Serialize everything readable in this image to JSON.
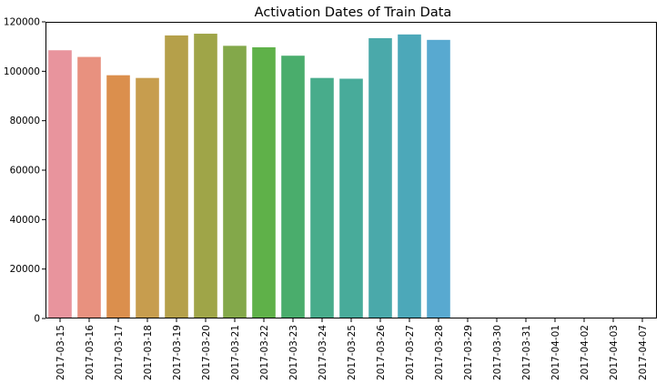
{
  "chart_data": {
    "type": "bar",
    "title": "Activation Dates of Train Data",
    "xlabel": "",
    "ylabel": "",
    "ylim": [
      0,
      120000
    ],
    "yticks": [
      0,
      20000,
      40000,
      60000,
      80000,
      100000,
      120000
    ],
    "grid": false,
    "legend": "none",
    "categories": [
      "2017-03-15",
      "2017-03-16",
      "2017-03-17",
      "2017-03-18",
      "2017-03-19",
      "2017-03-20",
      "2017-03-21",
      "2017-03-22",
      "2017-03-23",
      "2017-03-24",
      "2017-03-25",
      "2017-03-26",
      "2017-03-27",
      "2017-03-28",
      "2017-03-29",
      "2017-03-30",
      "2017-03-31",
      "2017-04-01",
      "2017-04-02",
      "2017-04-03",
      "2017-04-07"
    ],
    "values": [
      108500,
      105800,
      98400,
      97300,
      114500,
      115200,
      110300,
      109700,
      106300,
      97300,
      97000,
      113400,
      114900,
      112700,
      60,
      40,
      40,
      30,
      30,
      30,
      20
    ],
    "colors": [
      "#e8949d",
      "#e8917f",
      "#db8f4d",
      "#c79d4e",
      "#b5a04a",
      "#9fa548",
      "#83a84a",
      "#5fb149",
      "#4aad6c",
      "#48ac8b",
      "#48ab9a",
      "#4aa9aa",
      "#4ca8b9",
      "#58a9d0",
      "#8aa3e0",
      "#a39ae8",
      "#b792e8",
      "#cb8ae0",
      "#dc85d0",
      "#e587bd",
      "#e98ca9"
    ]
  }
}
